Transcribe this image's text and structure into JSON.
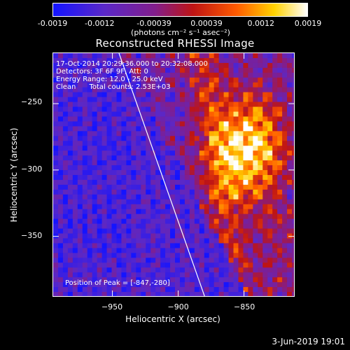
{
  "colorbar": {
    "tick_labels": [
      "-0.0019",
      "-0.0012",
      "-0.00039",
      "0.00039",
      "0.0012",
      "0.0019"
    ],
    "units": "(photons cm⁻² s⁻¹ asec⁻²)"
  },
  "title": "Reconstructed RHESSI Image",
  "info": {
    "time_range": "17-Oct-2014 20:29:36.000 to 20:32:08.000",
    "detectors": "Detectors: 3F 6F 9F, Att: 0",
    "energy": "Energy Range: 12.0 - 25.0 keV",
    "clean": "Clean      Total counts: 2.53E+03"
  },
  "peak_label": "Position of Peak = [-847,-280]",
  "timestamp": "3-Jun-2019 19:01",
  "chart_data": {
    "type": "heatmap",
    "title": "Reconstructed RHESSI Image",
    "xlabel": "Heliocentric X (arcsec)",
    "ylabel": "Heliocentric Y (arcsec)",
    "xlim": [
      -995,
      -812
    ],
    "ylim": [
      -395,
      -212
    ],
    "x_ticks": [
      -950,
      -900,
      -850
    ],
    "y_ticks": [
      -250,
      -300,
      -350
    ],
    "colorbar_range": [
      -0.0019,
      0.0019
    ],
    "colormap": "blue-purple-red-yellow-white",
    "peak_position": [
      -847,
      -280
    ],
    "limb_line": [
      [
        -945,
        -212
      ],
      [
        -880,
        -395
      ]
    ]
  }
}
